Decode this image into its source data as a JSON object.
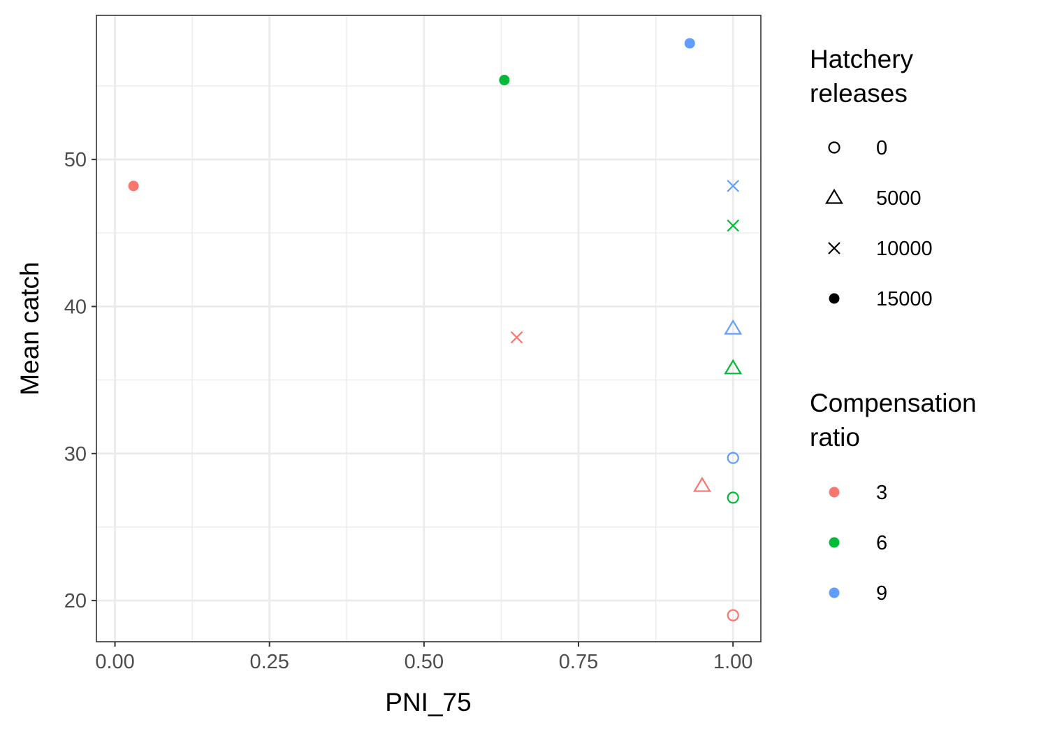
{
  "chart_data": {
    "type": "scatter",
    "title": "",
    "xlabel": "PNI_75",
    "ylabel": "Mean catch",
    "xlim": [
      -0.03,
      1.045
    ],
    "ylim": [
      17.2,
      59.8
    ],
    "x_ticks": [
      0.0,
      0.25,
      0.5,
      0.75,
      1.0
    ],
    "x_tick_labels": [
      "0.00",
      "0.25",
      "0.50",
      "0.75",
      "1.00"
    ],
    "y_ticks": [
      20,
      30,
      40,
      50
    ],
    "y_tick_labels": [
      "20",
      "30",
      "40",
      "50"
    ],
    "x_minor_ticks": [
      0.125,
      0.375,
      0.625,
      0.875
    ],
    "y_minor_ticks": [
      25,
      35,
      45,
      55
    ],
    "grid": true,
    "legend_position": "right",
    "shape_legend": {
      "title_lines": [
        "Hatchery",
        "releases"
      ],
      "entries": [
        {
          "label": "0",
          "shape": "circle-open"
        },
        {
          "label": "5000",
          "shape": "triangle-open"
        },
        {
          "label": "10000",
          "shape": "cross"
        },
        {
          "label": "15000",
          "shape": "circle-filled"
        }
      ]
    },
    "color_legend": {
      "title_lines": [
        "Compensation",
        "ratio"
      ],
      "entries": [
        {
          "label": "3",
          "color": "#F8766D"
        },
        {
          "label": "6",
          "color": "#00BA38"
        },
        {
          "label": "9",
          "color": "#619CFF"
        }
      ]
    },
    "points": [
      {
        "x": 0.03,
        "y": 48.2,
        "releases": "15000",
        "ratio": "3"
      },
      {
        "x": 0.63,
        "y": 55.4,
        "releases": "15000",
        "ratio": "6"
      },
      {
        "x": 0.93,
        "y": 57.9,
        "releases": "15000",
        "ratio": "9"
      },
      {
        "x": 0.65,
        "y": 37.9,
        "releases": "10000",
        "ratio": "3"
      },
      {
        "x": 1.0,
        "y": 45.5,
        "releases": "10000",
        "ratio": "6"
      },
      {
        "x": 1.0,
        "y": 48.2,
        "releases": "10000",
        "ratio": "9"
      },
      {
        "x": 0.95,
        "y": 27.8,
        "releases": "5000",
        "ratio": "3"
      },
      {
        "x": 1.0,
        "y": 35.8,
        "releases": "5000",
        "ratio": "6"
      },
      {
        "x": 1.0,
        "y": 38.5,
        "releases": "5000",
        "ratio": "9"
      },
      {
        "x": 1.0,
        "y": 19.0,
        "releases": "0",
        "ratio": "3"
      },
      {
        "x": 1.0,
        "y": 27.0,
        "releases": "0",
        "ratio": "6"
      },
      {
        "x": 1.0,
        "y": 29.7,
        "releases": "0",
        "ratio": "9"
      }
    ]
  }
}
